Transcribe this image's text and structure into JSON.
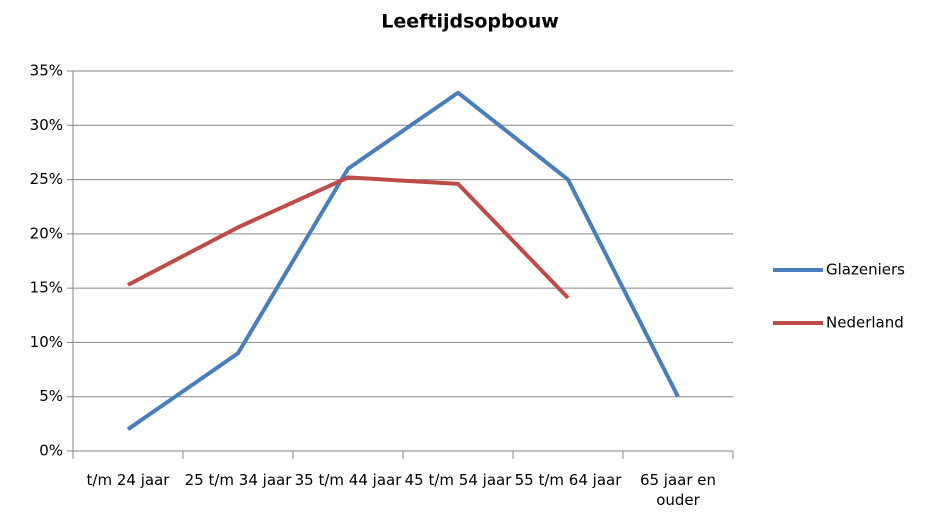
{
  "chart_data": {
    "type": "line",
    "title": "Leeftijdsopbouw",
    "categories": [
      "t/m 24 jaar",
      "25 t/m 34 jaar",
      "35 t/m 44 jaar",
      "45 t/m 54 jaar",
      "55 t/m 64 jaar",
      "65 jaar en ouder"
    ],
    "series": [
      {
        "name": "Glazeniers",
        "color": "#4a7ebb",
        "values": [
          2,
          9,
          26,
          33,
          25,
          5
        ]
      },
      {
        "name": "Nederland",
        "color": "#be4b48",
        "values": [
          15.3,
          20.6,
          25.2,
          24.6,
          14.1,
          null
        ]
      }
    ],
    "ylim": [
      0,
      35
    ],
    "yticks": [
      {
        "value": 0,
        "label": "0%"
      },
      {
        "value": 5,
        "label": "5%"
      },
      {
        "value": 10,
        "label": "10%"
      },
      {
        "value": 15,
        "label": "15%"
      },
      {
        "value": 20,
        "label": "20%"
      },
      {
        "value": 25,
        "label": "25%"
      },
      {
        "value": 30,
        "label": "30%"
      },
      {
        "value": 35,
        "label": "35%"
      }
    ],
    "grid": true,
    "legend": "right"
  }
}
